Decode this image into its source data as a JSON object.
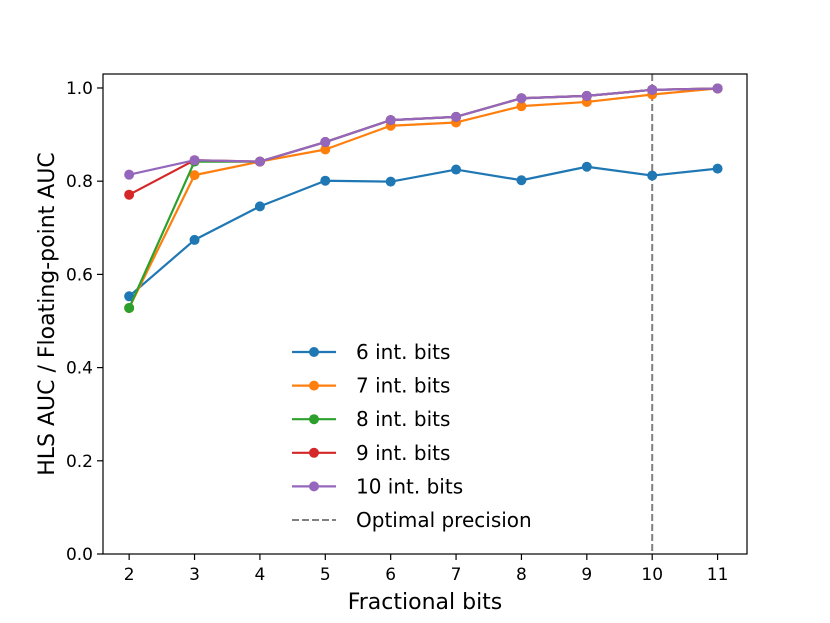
{
  "chart_data": {
    "type": "line",
    "xlabel": "Fractional bits",
    "ylabel": "HLS AUC / Floating-point AUC",
    "xlim": [
      1.6,
      11.45
    ],
    "ylim": [
      0.0,
      1.03
    ],
    "xticks": [
      2,
      3,
      4,
      5,
      6,
      7,
      8,
      9,
      10,
      11
    ],
    "yticks": [
      0.0,
      0.2,
      0.4,
      0.6,
      0.8,
      1.0
    ],
    "grid": false,
    "legend_position": "bottom-center",
    "series": [
      {
        "name": "6 int. bits",
        "color": "#1f77b4",
        "x": [
          2,
          3,
          4,
          5,
          6,
          7,
          8,
          9,
          10,
          11
        ],
        "y": [
          0.553,
          0.674,
          0.746,
          0.801,
          0.799,
          0.825,
          0.802,
          0.831,
          0.812,
          0.827
        ]
      },
      {
        "name": "7 int. bits",
        "color": "#ff7f0e",
        "x": [
          2,
          3,
          4,
          5,
          6,
          7,
          8,
          9,
          10,
          11
        ],
        "y": [
          0.528,
          0.813,
          0.842,
          0.868,
          0.919,
          0.926,
          0.961,
          0.97,
          0.986,
          0.999
        ]
      },
      {
        "name": "8 int. bits",
        "color": "#2ca02c",
        "x": [
          2,
          3,
          4,
          5,
          6,
          7,
          8,
          9,
          10,
          11
        ],
        "y": [
          0.528,
          0.842,
          0.842,
          0.884,
          0.931,
          0.938,
          0.978,
          0.983,
          0.996,
          0.999
        ]
      },
      {
        "name": "9 int. bits",
        "color": "#d62728",
        "x": [
          2,
          3,
          4,
          5,
          6,
          7,
          8,
          9,
          10,
          11
        ],
        "y": [
          0.771,
          0.845,
          0.842,
          0.884,
          0.931,
          0.938,
          0.978,
          0.983,
          0.996,
          0.999
        ]
      },
      {
        "name": "10 int. bits",
        "color": "#9467bd",
        "x": [
          2,
          3,
          4,
          5,
          6,
          7,
          8,
          9,
          10,
          11
        ],
        "y": [
          0.814,
          0.845,
          0.842,
          0.884,
          0.931,
          0.938,
          0.978,
          0.983,
          0.996,
          0.999
        ]
      }
    ],
    "reference_line": {
      "name": "Optimal precision",
      "x": 10,
      "color": "#808080",
      "style": "dashed"
    }
  }
}
